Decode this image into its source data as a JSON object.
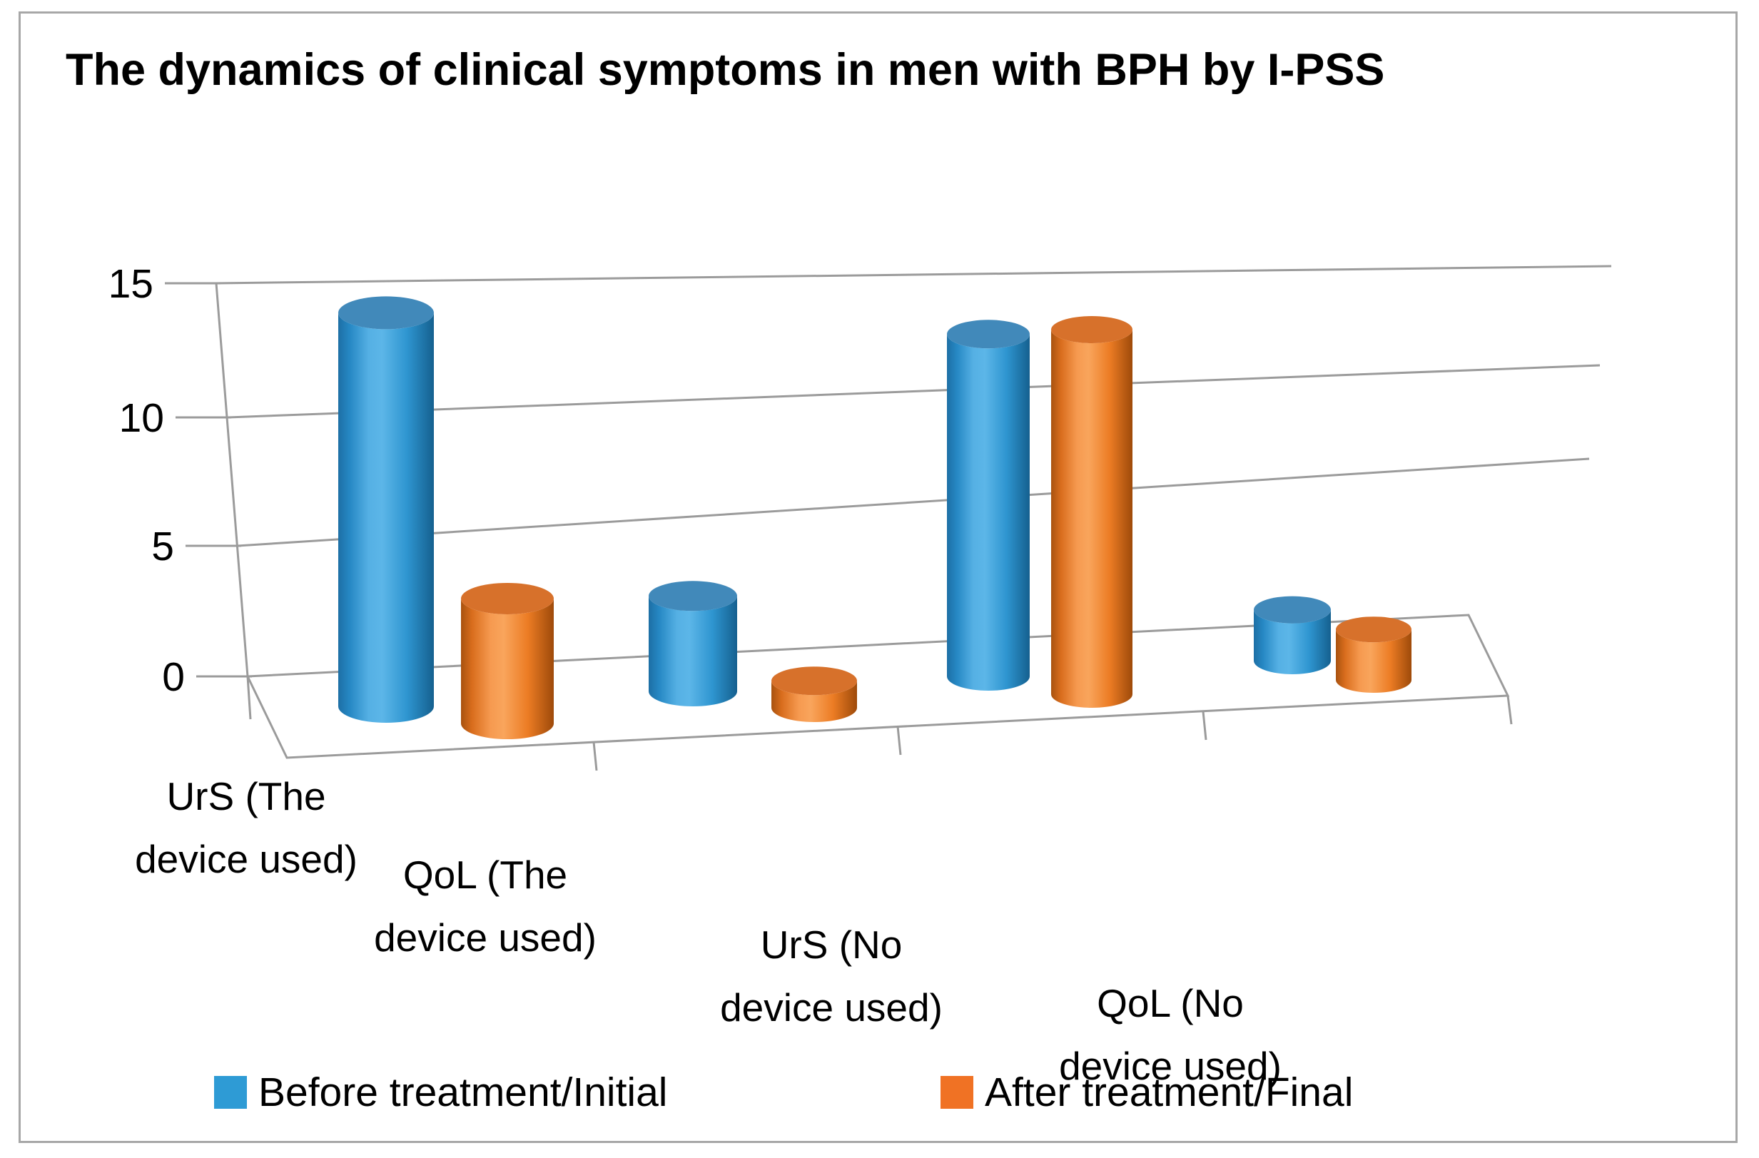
{
  "title": "The dynamics of clinical symptoms in men with BPH by I-PSS",
  "chart_data": {
    "type": "bar",
    "style": "3d-cylinder",
    "title": "The dynamics of clinical symptoms in men with BPH by I-PSS",
    "categories": [
      "UrS (The device used)",
      "QoL (The device used)",
      "UrS (No device used)",
      "QoL (No device used)"
    ],
    "category_lines": [
      [
        "UrS (The",
        "device used)"
      ],
      [
        "QoL (The",
        "device used)"
      ],
      [
        "UrS (No",
        "device used)"
      ],
      [
        "QoL (No",
        "device used)"
      ]
    ],
    "series": [
      {
        "name": "Before treatment/Initial",
        "color": "#2E9BD5",
        "values": [
          14,
          3.5,
          13,
          2
        ]
      },
      {
        "name": "After treatment/Final",
        "color": "#F07224",
        "values": [
          4.5,
          1,
          14,
          2
        ]
      }
    ],
    "yticks": [
      0,
      5,
      10,
      15
    ],
    "ylim": [
      0,
      15
    ],
    "xlabel": "",
    "ylabel": "",
    "grid": true,
    "legend_position": "bottom"
  },
  "colors": {
    "before_body": "#2E9BD5",
    "before_top": "#4189BA",
    "after_body": "#F07224",
    "after_top": "#D7712B",
    "gridline": "#9b9b9b",
    "axis": "#9b9b9b",
    "text": "#000000",
    "border": "#a7a7a7",
    "background": "#ffffff"
  }
}
